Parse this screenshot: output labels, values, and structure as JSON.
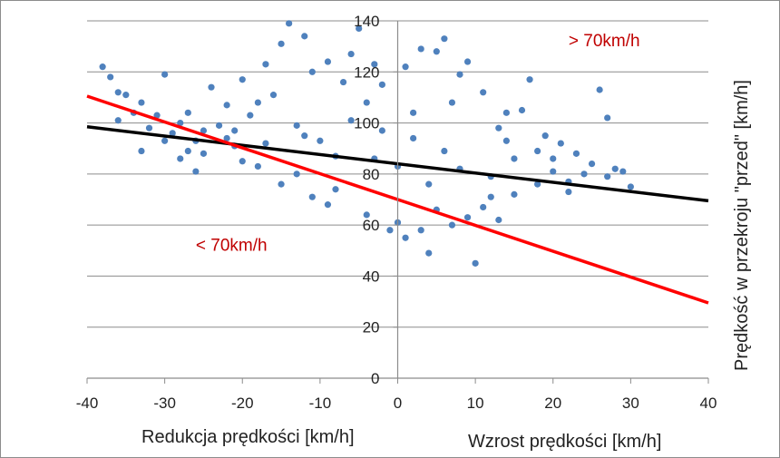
{
  "chart_data": {
    "type": "scatter",
    "xlim": [
      -40,
      40
    ],
    "ylim": [
      0,
      140
    ],
    "x_ticks": [
      "-40",
      "-30",
      "-20",
      "-10",
      "0",
      "10",
      "20",
      "30",
      "40"
    ],
    "y_ticks": [
      "0",
      "20",
      "40",
      "60",
      "80",
      "100",
      "120",
      "140"
    ],
    "grid": "horizontal",
    "xlabel_left": "Redukcja prędkości [km/h]",
    "xlabel_right": "Wzrost prędkości [km/h]",
    "ylabel": "Prędkość w przekroju \"przed\"  [km/h]",
    "annotations": [
      {
        "text": "> 70km/h",
        "x": 22,
        "y": 130,
        "color": "#c00000"
      },
      {
        "text": "< 70km/h",
        "x": -26,
        "y": 50,
        "color": "#c00000"
      }
    ],
    "marker_color": "#4f81bd",
    "points": [
      [
        -38,
        122
      ],
      [
        -37,
        118
      ],
      [
        -36,
        112
      ],
      [
        -36,
        101
      ],
      [
        -35,
        111
      ],
      [
        -34,
        104
      ],
      [
        -33,
        108
      ],
      [
        -33,
        89
      ],
      [
        -31,
        103
      ],
      [
        -30,
        119
      ],
      [
        -29,
        96
      ],
      [
        -28,
        86
      ],
      [
        -28,
        100
      ],
      [
        -27,
        104
      ],
      [
        -26,
        93
      ],
      [
        -26,
        81
      ],
      [
        -25,
        88
      ],
      [
        -24,
        114
      ],
      [
        -23,
        99
      ],
      [
        -22,
        107
      ],
      [
        -21,
        97
      ],
      [
        -21,
        91
      ],
      [
        -20,
        117
      ],
      [
        -20,
        85
      ],
      [
        -19,
        103
      ],
      [
        -18,
        108
      ],
      [
        -17,
        123
      ],
      [
        -17,
        92
      ],
      [
        -16,
        111
      ],
      [
        -15,
        131
      ],
      [
        -14,
        139
      ],
      [
        -13,
        99
      ],
      [
        -13,
        80
      ],
      [
        -12,
        134
      ],
      [
        -11,
        120
      ],
      [
        -10,
        93
      ],
      [
        -9,
        124
      ],
      [
        -8,
        74
      ],
      [
        -7,
        116
      ],
      [
        -6,
        127
      ],
      [
        -5,
        137
      ],
      [
        -4,
        108
      ],
      [
        -3,
        123
      ],
      [
        -2,
        115
      ],
      [
        -1,
        58
      ],
      [
        1,
        122
      ],
      [
        1,
        55
      ],
      [
        2,
        104
      ],
      [
        3,
        129
      ],
      [
        4,
        49
      ],
      [
        5,
        128
      ],
      [
        6,
        133
      ],
      [
        7,
        108
      ],
      [
        8,
        119
      ],
      [
        9,
        124
      ],
      [
        10,
        45
      ],
      [
        11,
        112
      ],
      [
        12,
        71
      ],
      [
        13,
        98
      ],
      [
        14,
        104
      ],
      [
        15,
        86
      ],
      [
        16,
        105
      ],
      [
        17,
        117
      ],
      [
        18,
        89
      ],
      [
        19,
        95
      ],
      [
        20,
        81
      ],
      [
        21,
        92
      ],
      [
        22,
        77
      ],
      [
        23,
        88
      ],
      [
        24,
        80
      ],
      [
        25,
        84
      ],
      [
        26,
        113
      ],
      [
        27,
        102
      ],
      [
        27,
        79
      ],
      [
        28,
        82
      ],
      [
        29,
        81
      ],
      [
        30,
        75
      ],
      [
        -9,
        68
      ],
      [
        -4,
        64
      ],
      [
        0,
        61
      ],
      [
        3,
        58
      ],
      [
        5,
        66
      ],
      [
        7,
        60
      ],
      [
        9,
        63
      ],
      [
        11,
        67
      ],
      [
        13,
        62
      ],
      [
        15,
        72
      ],
      [
        -11,
        71
      ],
      [
        -15,
        76
      ],
      [
        -18,
        83
      ],
      [
        -22,
        94
      ],
      [
        -25,
        97
      ],
      [
        -27,
        89
      ],
      [
        -30,
        93
      ],
      [
        -32,
        98
      ],
      [
        18,
        76
      ],
      [
        22,
        73
      ],
      [
        20,
        86
      ],
      [
        14,
        93
      ],
      [
        -6,
        101
      ],
      [
        -2,
        97
      ],
      [
        2,
        94
      ],
      [
        6,
        89
      ],
      [
        -8,
        87
      ],
      [
        -12,
        95
      ],
      [
        8,
        82
      ],
      [
        12,
        79
      ],
      [
        -3,
        86
      ],
      [
        4,
        76
      ],
      [
        0,
        83
      ]
    ],
    "series": [
      {
        "type": "line",
        "x": [
          -40,
          40
        ],
        "y": [
          98.5,
          69.5
        ],
        "color": "#000000"
      },
      {
        "type": "line",
        "x": [
          -40,
          40
        ],
        "y": [
          110.5,
          29.5
        ],
        "color": "#ff0000"
      }
    ]
  }
}
